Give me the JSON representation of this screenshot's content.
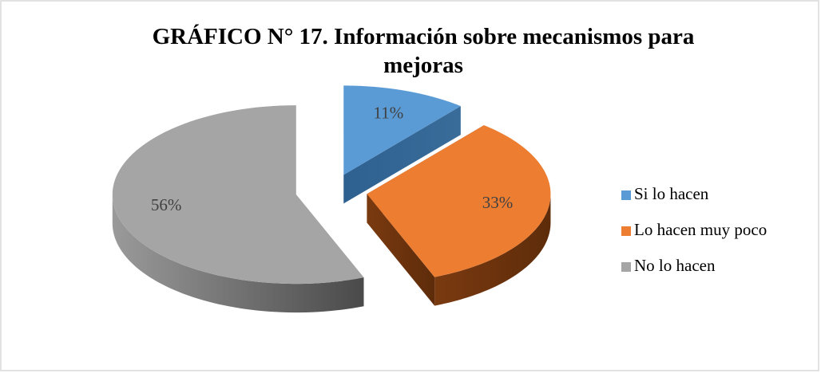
{
  "chart_data": {
    "type": "pie3d",
    "title": "GRÁFICO N° 17. Información sobre mecanismos para mejoras",
    "categories": [
      "Si lo hacen",
      "Lo hacen muy poco",
      "No lo hacen"
    ],
    "values": [
      11,
      33,
      56
    ],
    "value_labels": [
      "11%",
      "33%",
      "56%"
    ],
    "colors": [
      "#5b9bd5",
      "#ed7d31",
      "#a5a5a5"
    ],
    "legend": "right"
  }
}
